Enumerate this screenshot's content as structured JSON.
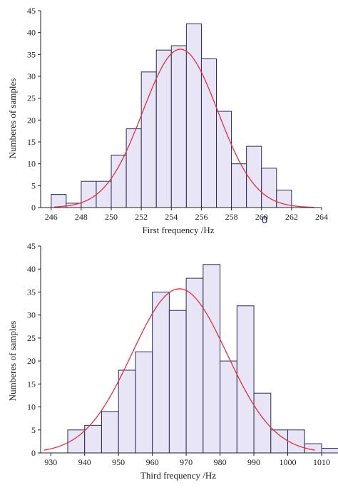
{
  "colors": {
    "bar_fill": "#e8e6f6",
    "bar_stroke": "#2b2b55",
    "fit_line": "#e03040",
    "stray_mark": "#1a237e"
  },
  "chart_data": [
    {
      "type": "bar",
      "subtype": "histogram-with-normal-fit",
      "title": "",
      "xlabel": "First frequency /Hz",
      "ylabel": "Numberes of samples",
      "xlim": [
        245.3,
        264
      ],
      "ylim": [
        0,
        45
      ],
      "xticks": [
        246,
        248,
        250,
        252,
        254,
        256,
        258,
        260,
        262,
        264
      ],
      "yticks": [
        0,
        5,
        10,
        15,
        20,
        25,
        30,
        35,
        40,
        45
      ],
      "bin_width": 1,
      "bins": [
        {
          "start": 246,
          "end": 247,
          "count": 3
        },
        {
          "start": 247,
          "end": 248,
          "count": 1
        },
        {
          "start": 248,
          "end": 249,
          "count": 6
        },
        {
          "start": 249,
          "end": 250,
          "count": 6
        },
        {
          "start": 250,
          "end": 251,
          "count": 12
        },
        {
          "start": 251,
          "end": 252,
          "count": 18
        },
        {
          "start": 252,
          "end": 253,
          "count": 31
        },
        {
          "start": 253,
          "end": 254,
          "count": 36
        },
        {
          "start": 254,
          "end": 255,
          "count": 37
        },
        {
          "start": 255,
          "end": 256,
          "count": 42
        },
        {
          "start": 256,
          "end": 257,
          "count": 34
        },
        {
          "start": 257,
          "end": 258,
          "count": 22
        },
        {
          "start": 258,
          "end": 259,
          "count": 10
        },
        {
          "start": 259,
          "end": 260,
          "count": 14
        },
        {
          "start": 260,
          "end": 261,
          "count": 9
        },
        {
          "start": 261,
          "end": 262,
          "count": 4
        }
      ],
      "fit": {
        "distribution": "normal",
        "mean": 254.6,
        "sd": 2.5,
        "peak": 36.2,
        "range": [
          246.2,
          263.5
        ]
      },
      "annotation": "0",
      "grid": false,
      "legend": "none"
    },
    {
      "type": "bar",
      "subtype": "histogram-with-normal-fit",
      "title": "",
      "xlabel": "Third frequency /Hz",
      "ylabel": "Numberes of samples",
      "xlim": [
        927,
        1010
      ],
      "ylim": [
        0,
        45
      ],
      "xticks": [
        930,
        940,
        950,
        960,
        970,
        980,
        990,
        1000,
        1010
      ],
      "yticks": [
        0,
        5,
        10,
        15,
        20,
        25,
        30,
        35,
        40,
        45
      ],
      "bin_width": 5,
      "bins": [
        {
          "start": 935,
          "end": 940,
          "count": 5
        },
        {
          "start": 940,
          "end": 945,
          "count": 6
        },
        {
          "start": 945,
          "end": 950,
          "count": 9
        },
        {
          "start": 950,
          "end": 955,
          "count": 18
        },
        {
          "start": 955,
          "end": 960,
          "count": 22
        },
        {
          "start": 960,
          "end": 965,
          "count": 35
        },
        {
          "start": 965,
          "end": 970,
          "count": 31
        },
        {
          "start": 970,
          "end": 975,
          "count": 38
        },
        {
          "start": 975,
          "end": 980,
          "count": 41
        },
        {
          "start": 980,
          "end": 985,
          "count": 20
        },
        {
          "start": 985,
          "end": 990,
          "count": 32
        },
        {
          "start": 990,
          "end": 995,
          "count": 13
        },
        {
          "start": 995,
          "end": 1000,
          "count": 5
        },
        {
          "start": 1000,
          "end": 1005,
          "count": 5
        },
        {
          "start": 1005,
          "end": 1010,
          "count": 2
        },
        {
          "start": 1010,
          "end": 1015,
          "count": 1
        }
      ],
      "fit": {
        "distribution": "normal",
        "mean": 968,
        "sd": 14,
        "peak": 35.7,
        "range": [
          928,
          1008
        ]
      },
      "grid": false,
      "legend": "none"
    }
  ]
}
